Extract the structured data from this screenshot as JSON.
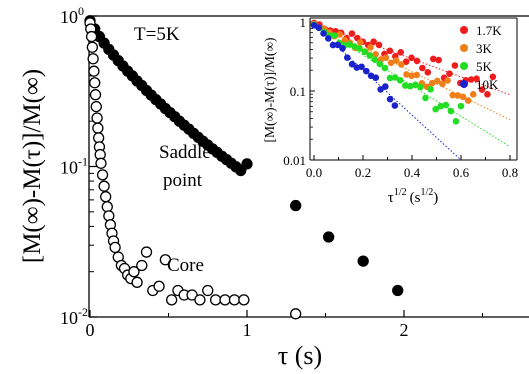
{
  "chart_data": [
    {
      "type": "scatter",
      "annotation": "T=5K",
      "xlabel": "τ (s)",
      "ylabel": "[M(∞)-M(τ)]/M(∞)",
      "xlim": [
        0,
        2.75
      ],
      "ylim": [
        0.01,
        1
      ],
      "yscale": "log",
      "x_ticks": [
        0,
        1,
        2
      ],
      "y_ticks": [
        {
          "value": 1,
          "base": "10",
          "exp": "0"
        },
        {
          "value": 0.1,
          "base": "10",
          "exp": "-1"
        },
        {
          "value": 0.01,
          "base": "10",
          "exp": "-2"
        }
      ],
      "series": [
        {
          "name": "Saddle point",
          "marker": "filled-circle",
          "color": "#000000",
          "x": [
            0.0,
            0.03,
            0.06,
            0.09,
            0.12,
            0.15,
            0.18,
            0.21,
            0.24,
            0.27,
            0.3,
            0.33,
            0.36,
            0.39,
            0.42,
            0.45,
            0.48,
            0.51,
            0.54,
            0.57,
            0.6,
            0.63,
            0.66,
            0.69,
            0.72,
            0.75,
            0.78,
            0.81,
            0.84,
            0.87,
            0.9,
            0.93,
            0.96,
            1.0,
            1.31,
            1.52,
            1.74,
            1.96
          ],
          "y": [
            0.93,
            0.82,
            0.73,
            0.66,
            0.6,
            0.55,
            0.505,
            0.465,
            0.43,
            0.4,
            0.37,
            0.345,
            0.32,
            0.298,
            0.278,
            0.26,
            0.243,
            0.228,
            0.214,
            0.2,
            0.188,
            0.177,
            0.166,
            0.156,
            0.147,
            0.139,
            0.131,
            0.124,
            0.117,
            0.111,
            0.105,
            0.0995,
            0.094,
            0.104,
            0.055,
            0.034,
            0.0235,
            0.015
          ]
        },
        {
          "name": "Core",
          "marker": "open-circle",
          "color": "#000000",
          "x": [
            0.0,
            0.005,
            0.01,
            0.015,
            0.02,
            0.025,
            0.03,
            0.035,
            0.04,
            0.045,
            0.05,
            0.055,
            0.06,
            0.065,
            0.07,
            0.08,
            0.09,
            0.1,
            0.11,
            0.12,
            0.13,
            0.14,
            0.15,
            0.16,
            0.18,
            0.2,
            0.22,
            0.24,
            0.26,
            0.28,
            0.3,
            0.33,
            0.36,
            0.4,
            0.44,
            0.48,
            0.52,
            0.56,
            0.6,
            0.65,
            0.7,
            0.75,
            0.8,
            0.86,
            0.92,
            0.98,
            1.31
          ],
          "y": [
            0.9,
            0.82,
            0.73,
            0.62,
            0.52,
            0.43,
            0.36,
            0.3,
            0.25,
            0.21,
            0.18,
            0.155,
            0.135,
            0.12,
            0.105,
            0.088,
            0.074,
            0.063,
            0.054,
            0.047,
            0.041,
            0.036,
            0.032,
            0.029,
            0.025,
            0.022,
            0.021,
            0.019,
            0.018,
            0.02,
            0.017,
            0.022,
            0.027,
            0.015,
            0.016,
            0.024,
            0.013,
            0.015,
            0.014,
            0.014,
            0.013,
            0.015,
            0.013,
            0.013,
            0.013,
            0.013,
            0.0105
          ]
        }
      ],
      "annotations": [
        "Saddle",
        "point",
        "Core"
      ]
    },
    {
      "type": "scatter",
      "inset": true,
      "xlabel": "τ",
      "xlabel_sup": "1/2",
      "xlabel_unit": "(s",
      "xlabel_unit_sup": "1/2",
      "xlabel_close": ")",
      "ylabel": "[M(∞)-M(τ)]/M(∞)",
      "xlim": [
        0,
        0.8
      ],
      "ylim": [
        0.01,
        1
      ],
      "yscale": "log",
      "x_ticks": [
        "0.0",
        "0.2",
        "0.4",
        "0.6",
        "0.8"
      ],
      "y_ticks": [
        "1",
        "0.1",
        "0.01"
      ],
      "legend_position": "top-right",
      "series": [
        {
          "name": "1.7K",
          "color": "#ee1c1c",
          "x0": 0.0,
          "y0": 0.97,
          "slope": -3.0,
          "fit": true,
          "n": 34,
          "xmax": 0.73
        },
        {
          "name": "3K",
          "color": "#f07f1a",
          "x0": 0.0,
          "y0": 0.94,
          "slope": -4.0,
          "fit": true,
          "n": 32,
          "xmax": 0.65
        },
        {
          "name": "5K",
          "color": "#22dd22",
          "x0": 0.0,
          "y0": 0.92,
          "slope": -5.1,
          "fit": true,
          "n": 30,
          "xmax": 0.6
        },
        {
          "name": "10K",
          "color": "#1a22cc",
          "x0": 0.0,
          "y0": 0.9,
          "slope": -7.5,
          "fit": true,
          "n": 18,
          "xmax": 0.33
        }
      ]
    }
  ]
}
